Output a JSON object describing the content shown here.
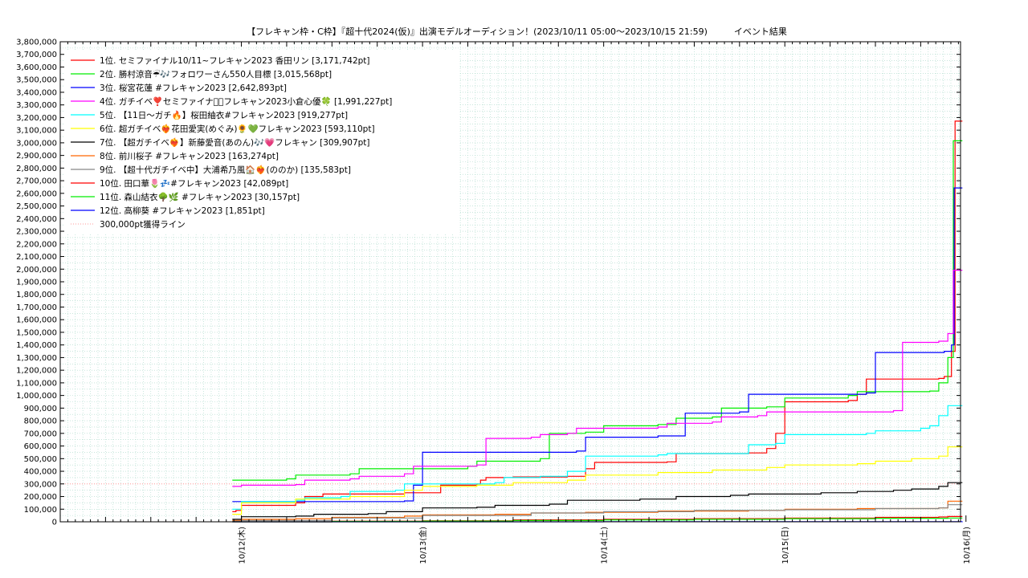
{
  "chart_data": {
    "type": "line",
    "title": "【フレキャン枠・C枠】『超十代2024(仮)』出演モデルオーディション！(2023/10/11 05:00〜2023/10/15 21:59)",
    "subtitle": "イベント結果",
    "xlabel": "",
    "ylabel": "",
    "ylim": [
      0,
      3800000
    ],
    "xlim": [
      0,
      4.97
    ],
    "grid": true,
    "legend_position": "top-left",
    "x_ticks": [
      {
        "x": 1,
        "label": "10/12(木)"
      },
      {
        "x": 2,
        "label": "10/13(金)"
      },
      {
        "x": 3,
        "label": "10/14(土)"
      },
      {
        "x": 4,
        "label": "10/15(日)"
      },
      {
        "x": 5,
        "label": "10/16(月)"
      }
    ],
    "y_ticks": [
      "0",
      "100,000",
      "200,000",
      "300,000",
      "400,000",
      "500,000",
      "600,000",
      "700,000",
      "800,000",
      "900,000",
      "1,000,000",
      "1,100,000",
      "1,200,000",
      "1,300,000",
      "1,400,000",
      "1,500,000",
      "1,600,000",
      "1,700,000",
      "1,800,000",
      "1,900,000",
      "2,000,000",
      "2,100,000",
      "2,200,000",
      "2,300,000",
      "2,400,000",
      "2,500,000",
      "2,600,000",
      "2,700,000",
      "2,800,000",
      "2,900,000",
      "3,000,000",
      "3,100,000",
      "3,200,000",
      "3,300,000",
      "3,400,000",
      "3,500,000",
      "3,600,000",
      "3,700,000",
      "3,800,000"
    ],
    "series": [
      {
        "name": "1位. セミファイナル10/11~フレキャン2023 香田リン [3,171,742pt]",
        "color": "#ff0000",
        "points": [
          [
            0.95,
            80000
          ],
          [
            0.97,
            90000
          ],
          [
            1.0,
            130000
          ],
          [
            1.3,
            150000
          ],
          [
            1.35,
            200000
          ],
          [
            1.45,
            220000
          ],
          [
            1.9,
            230000
          ],
          [
            2.1,
            290000
          ],
          [
            2.3,
            300000
          ],
          [
            2.32,
            330000
          ],
          [
            2.35,
            350000
          ],
          [
            2.5,
            355000
          ],
          [
            2.8,
            360000
          ],
          [
            2.9,
            420000
          ],
          [
            2.95,
            470000
          ],
          [
            3.35,
            475000
          ],
          [
            3.4,
            540000
          ],
          [
            3.8,
            545000
          ],
          [
            3.9,
            580000
          ],
          [
            3.95,
            700000
          ],
          [
            4.0,
            950000
          ],
          [
            4.35,
            960000
          ],
          [
            4.4,
            1010000
          ],
          [
            4.45,
            1130000
          ],
          [
            4.85,
            1135000
          ],
          [
            4.88,
            1150000
          ],
          [
            4.92,
            1350000
          ],
          [
            4.94,
            3171742
          ],
          [
            4.98,
            3171742
          ]
        ]
      },
      {
        "name": "2位. 勝村涼音☔🎶フォロワーさん550人目標 [3,015,568pt]",
        "color": "#00ee00",
        "points": [
          [
            0.95,
            330000
          ],
          [
            1.25,
            340000
          ],
          [
            1.3,
            370000
          ],
          [
            1.6,
            380000
          ],
          [
            1.65,
            420000
          ],
          [
            2.25,
            440000
          ],
          [
            2.3,
            480000
          ],
          [
            2.65,
            500000
          ],
          [
            2.7,
            700000
          ],
          [
            2.9,
            710000
          ],
          [
            3.0,
            760000
          ],
          [
            3.3,
            770000
          ],
          [
            3.4,
            820000
          ],
          [
            3.6,
            830000
          ],
          [
            3.65,
            900000
          ],
          [
            3.9,
            910000
          ],
          [
            4.0,
            980000
          ],
          [
            4.35,
            1000000
          ],
          [
            4.4,
            1030000
          ],
          [
            4.8,
            1035000
          ],
          [
            4.85,
            1100000
          ],
          [
            4.9,
            1300000
          ],
          [
            4.93,
            3015568
          ],
          [
            4.98,
            3015568
          ]
        ]
      },
      {
        "name": "3位. 桜宮花蓮 #フレキャン2023 [2,642,893pt]",
        "color": "#0000ff",
        "points": [
          [
            0.95,
            160000
          ],
          [
            1.0,
            160000
          ],
          [
            1.5,
            160000
          ],
          [
            1.9,
            165000
          ],
          [
            1.95,
            290000
          ],
          [
            2.0,
            550000
          ],
          [
            2.85,
            560000
          ],
          [
            2.9,
            670000
          ],
          [
            3.3,
            680000
          ],
          [
            3.45,
            860000
          ],
          [
            3.75,
            870000
          ],
          [
            3.8,
            1010000
          ],
          [
            4.45,
            1020000
          ],
          [
            4.5,
            1340000
          ],
          [
            4.88,
            1350000
          ],
          [
            4.92,
            1400000
          ],
          [
            4.935,
            2642893
          ],
          [
            4.98,
            2642893
          ]
        ]
      },
      {
        "name": "4位. ガチイベ❣️セミファイナル🏻フレキャン2023小倉心優🍀 [1,991,227pt]",
        "color": "#ff00ff",
        "points": [
          [
            0.95,
            280000
          ],
          [
            1.0,
            290000
          ],
          [
            1.3,
            295000
          ],
          [
            1.35,
            330000
          ],
          [
            1.6,
            340000
          ],
          [
            1.65,
            360000
          ],
          [
            1.9,
            380000
          ],
          [
            1.95,
            440000
          ],
          [
            2.3,
            450000
          ],
          [
            2.35,
            660000
          ],
          [
            2.6,
            670000
          ],
          [
            2.65,
            690000
          ],
          [
            2.8,
            700000
          ],
          [
            2.85,
            740000
          ],
          [
            3.3,
            750000
          ],
          [
            3.35,
            780000
          ],
          [
            3.6,
            790000
          ],
          [
            3.65,
            830000
          ],
          [
            3.85,
            840000
          ],
          [
            3.9,
            870000
          ],
          [
            4.6,
            880000
          ],
          [
            4.65,
            1420000
          ],
          [
            4.85,
            1430000
          ],
          [
            4.9,
            1490000
          ],
          [
            4.93,
            1991227
          ],
          [
            4.98,
            1991227
          ]
        ]
      },
      {
        "name": "5位. 【11日〜ガチ🔥】桜田紬衣#フレキャン2023 [919,277pt]",
        "color": "#00ffff",
        "points": [
          [
            0.95,
            100000
          ],
          [
            1.0,
            160000
          ],
          [
            1.3,
            170000
          ],
          [
            1.35,
            190000
          ],
          [
            1.55,
            200000
          ],
          [
            1.6,
            240000
          ],
          [
            1.85,
            250000
          ],
          [
            1.9,
            300000
          ],
          [
            2.4,
            310000
          ],
          [
            2.45,
            350000
          ],
          [
            2.65,
            360000
          ],
          [
            2.8,
            400000
          ],
          [
            2.9,
            520000
          ],
          [
            3.3,
            530000
          ],
          [
            3.35,
            540000
          ],
          [
            3.8,
            610000
          ],
          [
            3.95,
            620000
          ],
          [
            4.0,
            690000
          ],
          [
            4.45,
            700000
          ],
          [
            4.5,
            720000
          ],
          [
            4.75,
            740000
          ],
          [
            4.8,
            760000
          ],
          [
            4.85,
            840000
          ],
          [
            4.9,
            919277
          ],
          [
            4.98,
            919277
          ]
        ]
      },
      {
        "name": "6位. 超ガチイベ❤️‍🔥花田愛実(めぐみ)🌻💚フレキャン2023 [593,110pt]",
        "color": "#ffff00",
        "points": [
          [
            0.95,
            60000
          ],
          [
            1.0,
            150000
          ],
          [
            1.3,
            180000
          ],
          [
            1.6,
            200000
          ],
          [
            1.9,
            250000
          ],
          [
            2.0,
            280000
          ],
          [
            2.3,
            290000
          ],
          [
            2.5,
            310000
          ],
          [
            2.8,
            330000
          ],
          [
            2.9,
            370000
          ],
          [
            3.3,
            390000
          ],
          [
            3.6,
            410000
          ],
          [
            3.9,
            430000
          ],
          [
            4.0,
            450000
          ],
          [
            4.4,
            460000
          ],
          [
            4.5,
            480000
          ],
          [
            4.7,
            500000
          ],
          [
            4.85,
            520000
          ],
          [
            4.9,
            593110
          ],
          [
            4.98,
            593110
          ]
        ]
      },
      {
        "name": "7位. 【超ガチイベ❤️‍🔥】新藤愛音(あのん)🎶💗フレキャン [309,907pt]",
        "color": "#000000",
        "points": [
          [
            0.95,
            20000
          ],
          [
            1.0,
            40000
          ],
          [
            1.3,
            45000
          ],
          [
            1.4,
            60000
          ],
          [
            1.7,
            65000
          ],
          [
            1.8,
            80000
          ],
          [
            2.0,
            110000
          ],
          [
            2.3,
            115000
          ],
          [
            2.4,
            130000
          ],
          [
            2.7,
            140000
          ],
          [
            2.8,
            170000
          ],
          [
            3.2,
            180000
          ],
          [
            3.4,
            200000
          ],
          [
            3.7,
            210000
          ],
          [
            3.8,
            220000
          ],
          [
            4.2,
            230000
          ],
          [
            4.4,
            240000
          ],
          [
            4.6,
            250000
          ],
          [
            4.7,
            260000
          ],
          [
            4.85,
            280000
          ],
          [
            4.9,
            309907
          ],
          [
            4.98,
            309907
          ]
        ]
      },
      {
        "name": "8位. 前川桜子 #フレキャン2023 [163,274pt]",
        "color": "#ff6600",
        "points": [
          [
            0.95,
            10000
          ],
          [
            1.0,
            20000
          ],
          [
            1.3,
            25000
          ],
          [
            1.5,
            35000
          ],
          [
            1.9,
            45000
          ],
          [
            2.0,
            55000
          ],
          [
            2.4,
            60000
          ],
          [
            2.6,
            70000
          ],
          [
            2.9,
            75000
          ],
          [
            3.3,
            85000
          ],
          [
            3.8,
            90000
          ],
          [
            4.0,
            100000
          ],
          [
            4.4,
            105000
          ],
          [
            4.85,
            110000
          ],
          [
            4.9,
            163274
          ],
          [
            4.98,
            163274
          ]
        ]
      },
      {
        "name": "9位. 【超十代ガチイベ中】大浦希乃風🏠❤️‍🔥(ののか) [135,583pt]",
        "color": "#888888",
        "points": [
          [
            0.95,
            5000
          ],
          [
            1.0,
            10000
          ],
          [
            1.5,
            30000
          ],
          [
            2.0,
            50000
          ],
          [
            2.6,
            70000
          ],
          [
            3.0,
            80000
          ],
          [
            3.5,
            90000
          ],
          [
            4.0,
            95000
          ],
          [
            4.5,
            105000
          ],
          [
            4.85,
            110000
          ],
          [
            4.9,
            135583
          ],
          [
            4.98,
            135583
          ]
        ]
      },
      {
        "name": "10位. 田口華🌷💤#フレキャン2023 [42,089pt]",
        "color": "#ff0000",
        "points": [
          [
            0.95,
            0
          ],
          [
            1.5,
            5000
          ],
          [
            2.0,
            8000
          ],
          [
            2.5,
            15000
          ],
          [
            3.0,
            20000
          ],
          [
            3.5,
            25000
          ],
          [
            4.0,
            30000
          ],
          [
            4.5,
            35000
          ],
          [
            4.85,
            38000
          ],
          [
            4.9,
            42089
          ],
          [
            4.98,
            42089
          ]
        ]
      },
      {
        "name": "11位. 森山結衣🌳🌿 #フレキャン2023 [30,157pt]",
        "color": "#00ee00",
        "points": [
          [
            0.95,
            0
          ],
          [
            1.5,
            3000
          ],
          [
            2.0,
            6000
          ],
          [
            2.5,
            10000
          ],
          [
            3.0,
            15000
          ],
          [
            3.5,
            20000
          ],
          [
            4.0,
            25000
          ],
          [
            4.5,
            28000
          ],
          [
            4.9,
            30157
          ],
          [
            4.98,
            30157
          ]
        ]
      },
      {
        "name": "12位. 高柳葵 #フレキャン2023 [1,851pt]",
        "color": "#0000ff",
        "points": [
          [
            0.95,
            0
          ],
          [
            3.0,
            1000
          ],
          [
            4.98,
            1851
          ]
        ]
      }
    ],
    "reference_line": {
      "name": "300,000pt獲得ライン",
      "value": 300000,
      "color": "#ff9999"
    }
  }
}
